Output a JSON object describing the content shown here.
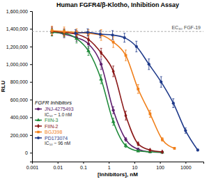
{
  "chart_data": {
    "type": "scatter",
    "title": "Human FGFR4/β-Klotho, Inhibition Assay",
    "x_label": "[Inhibitors], nM",
    "y_label": "RLU",
    "log": "x",
    "grid": false,
    "legend": "lower left",
    "legend_title": "FGFR Inhibitors",
    "xlim": [
      0.001,
      5000
    ],
    "xticks": [
      0.001,
      0.01,
      0.1,
      1,
      10,
      100,
      1000
    ],
    "ylim": [
      -100000,
      1600000
    ],
    "yticks": [
      0,
      {
        "value": 200000,
        "label": "200,000"
      },
      {
        "value": 400000,
        "label": "400,000"
      },
      {
        "value": 600000,
        "label": "600,000"
      },
      {
        "value": 800000,
        "label": "800,000"
      },
      {
        "value": 1000000,
        "label": "1,000,000"
      },
      {
        "value": 1200000,
        "label": "1,200,000"
      },
      {
        "value": 1400000,
        "label": "1,400,000"
      },
      {
        "value": 1600000,
        "label": "1,600,000"
      }
    ],
    "reference_line": {
      "value": 1370000,
      "label": "EC₈₀ FGF-19",
      "line_style": "dashed"
    },
    "series": [
      {
        "name": "JNJ-4275493",
        "ic50_label": "IC₅₀ ~ 1.0 nM",
        "color": "#5e1f6e",
        "marker": "circle",
        "x": [
          0.006,
          0.018,
          0.055,
          0.16,
          0.5,
          1.5,
          4.6,
          14,
          41,
          123
        ],
        "values": [
          1370000,
          1340000,
          1300000,
          1230000,
          1000000,
          480000,
          150000,
          40000,
          10000,
          5000
        ],
        "errors": [
          50000,
          40000,
          40000,
          50000,
          60000,
          40000,
          20000,
          10000,
          5000,
          5000
        ]
      },
      {
        "name": "FIIN-3",
        "color": "#1f8a3a",
        "marker": "triangle",
        "x": [
          0.006,
          0.018,
          0.055,
          0.16,
          0.5,
          1.5,
          4.6,
          14,
          41,
          123
        ],
        "values": [
          1360000,
          1350000,
          1290000,
          1150000,
          830000,
          350000,
          80000,
          20000,
          10000,
          5000
        ],
        "errors": [
          40000,
          40000,
          50000,
          50000,
          50000,
          40000,
          20000,
          10000,
          5000,
          5000
        ]
      },
      {
        "name": "FIIN-2",
        "color": "#8b1a1a",
        "marker": "diamond",
        "x": [
          0.006,
          0.018,
          0.055,
          0.16,
          0.5,
          1.5,
          4.6,
          14,
          41,
          123
        ],
        "values": [
          1370000,
          1360000,
          1340000,
          1280000,
          1130000,
          920000,
          420000,
          100000,
          30000,
          10000
        ],
        "errors": [
          40000,
          40000,
          40000,
          50000,
          50000,
          60000,
          50000,
          20000,
          10000,
          5000
        ]
      },
      {
        "name": "BGJ398",
        "color": "#f07f1a",
        "marker": "square",
        "x": [
          0.006,
          0.018,
          0.055,
          0.16,
          0.5,
          1.5,
          4.6,
          14,
          41,
          123,
          370
        ],
        "values": [
          1380000,
          1370000,
          1360000,
          1350000,
          1330000,
          1250000,
          1100000,
          720000,
          440000,
          150000,
          50000
        ],
        "errors": [
          50000,
          50000,
          40000,
          40000,
          60000,
          60000,
          60000,
          50000,
          40000,
          20000,
          10000
        ]
      },
      {
        "name": "PD173074",
        "ic50_label": "IC₅₀ ~ 96 nM",
        "color": "#1f3a8a",
        "marker": "circle",
        "x": [
          0.05,
          0.15,
          0.46,
          1.4,
          4.1,
          12,
          37,
          111,
          333,
          1000,
          3000
        ],
        "values": [
          1350000,
          1360000,
          1340000,
          1330000,
          1300000,
          1200000,
          1000000,
          800000,
          560000,
          250000,
          30000
        ],
        "errors": [
          40000,
          40000,
          40000,
          50000,
          50000,
          60000,
          60000,
          60000,
          50000,
          30000,
          10000
        ]
      }
    ]
  }
}
